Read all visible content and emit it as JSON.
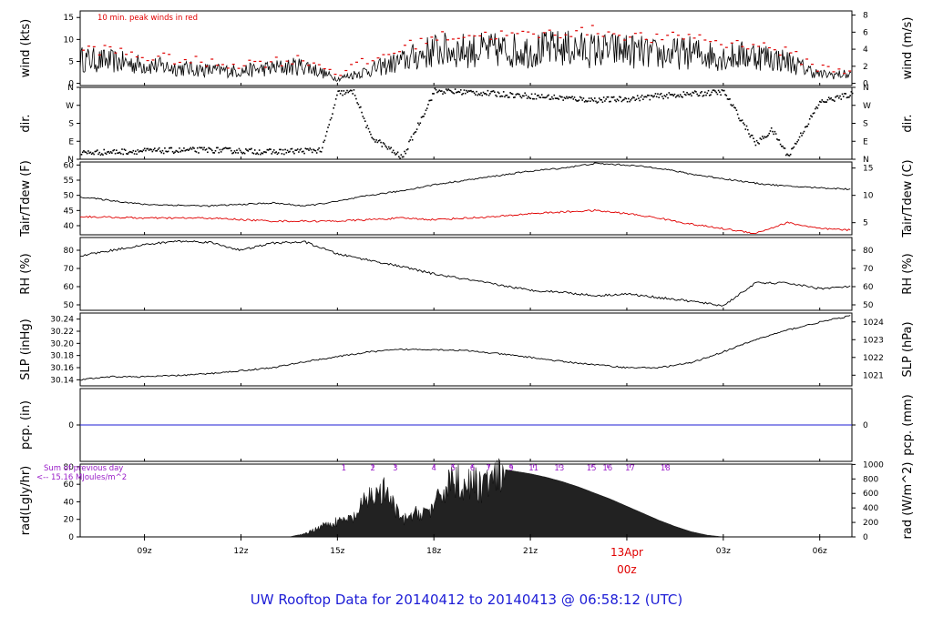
{
  "title": "UW Rooftop Data for 20140412  to  20140413 @ 06:58:12  (UTC)",
  "colors": {
    "line": "#000000",
    "red": "#e00000",
    "blue": "#1d1dd6",
    "purple": "#9a1ec8"
  },
  "chart_data": [
    {
      "type": "line",
      "name": "wind",
      "ylabel": "wind (kts)",
      "ylabel_right": "wind (m/s)",
      "annotation": "10 min. peak winds in red",
      "ylim": [
        -0.5,
        16.5
      ],
      "yticks": [
        0,
        5,
        10,
        15
      ],
      "ylim_right": [
        -0.26,
        8.49
      ],
      "yticks_right": [
        0,
        2,
        4,
        6,
        8
      ],
      "x": [
        0,
        1,
        2,
        3,
        4,
        5,
        6,
        7,
        8,
        9,
        10,
        11,
        12,
        13,
        14,
        15,
        16,
        17,
        18,
        19,
        20,
        21,
        22,
        23,
        24
      ],
      "mean": [
        5.5,
        5,
        4.2,
        3.5,
        3,
        2.8,
        3.5,
        4,
        1,
        3,
        5,
        7.5,
        7.5,
        7.5,
        7.5,
        8,
        7.5,
        7.5,
        6.5,
        7,
        6,
        6.5,
        5,
        2,
        2
      ],
      "peak": [
        8,
        7.5,
        6,
        5.5,
        4.5,
        4.5,
        5,
        5.5,
        2.5,
        5,
        8,
        10.5,
        11,
        11,
        11,
        11.5,
        12,
        11,
        10,
        11,
        9,
        9,
        7,
        3.5,
        3
      ]
    },
    {
      "type": "scatter",
      "name": "dir",
      "ylabel": "dir.",
      "ylabel_right": "dir.",
      "ylim": [
        0,
        360
      ],
      "ytick_values": [
        0,
        90,
        180,
        270,
        360
      ],
      "ytick_labels": [
        "N",
        "E",
        "S",
        "W",
        "N"
      ],
      "ytick_labels_right": [
        "N",
        "E",
        "S",
        "W",
        "N"
      ],
      "x": [
        0,
        2,
        4,
        6,
        7.5,
        8,
        8.5,
        9,
        10,
        11,
        12,
        13,
        14,
        15,
        16,
        17,
        18,
        19,
        20,
        21,
        21.5,
        22,
        23,
        24
      ],
      "values": [
        35,
        45,
        50,
        40,
        50,
        335,
        340,
        120,
        10,
        345,
        340,
        330,
        320,
        310,
        300,
        305,
        320,
        330,
        340,
        80,
        150,
        20,
        290,
        330
      ]
    },
    {
      "type": "line",
      "name": "temperature",
      "ylabel": "Tair/Tdew (F)",
      "ylabel_right": "Tair/Tdew (C)",
      "ylim": [
        37,
        61
      ],
      "yticks": [
        40,
        45,
        50,
        55,
        60
      ],
      "ylim_right": [
        2.78,
        16.11
      ],
      "yticks_right": [
        5,
        10,
        15
      ],
      "x": [
        0,
        2,
        4,
        6,
        7,
        8,
        9,
        10,
        11,
        12,
        13,
        14,
        15,
        16,
        17,
        18,
        19,
        20,
        21,
        22,
        23,
        24
      ],
      "series": [
        {
          "values": [
            49.5,
            47,
            46.5,
            47.5,
            46.5,
            48,
            50,
            51.5,
            53.5,
            55,
            56.5,
            58,
            59,
            60.5,
            60,
            59,
            57,
            55.5,
            54,
            53,
            52.5,
            52
          ]
        },
        {
          "values": [
            43,
            42.5,
            42.5,
            41.5,
            41.5,
            41.5,
            42,
            42.5,
            42,
            42.5,
            43,
            44,
            44.5,
            45,
            44,
            42.5,
            40.5,
            39,
            37.5,
            41,
            39,
            38.5
          ]
        }
      ]
    },
    {
      "type": "line",
      "name": "rh",
      "ylabel": "RH (%)",
      "ylabel_right": "RH (%)",
      "ylim": [
        47,
        87
      ],
      "yticks": [
        50,
        60,
        70,
        80
      ],
      "yticks_right": [
        50,
        60,
        70,
        80
      ],
      "x": [
        0,
        1,
        2,
        3,
        4,
        5,
        6,
        7,
        8,
        9,
        10,
        11,
        12,
        13,
        14,
        15,
        16,
        17,
        18,
        19,
        20,
        21,
        22,
        23,
        24
      ],
      "values": [
        77,
        80,
        83,
        85,
        84.5,
        80,
        84,
        84.5,
        78,
        74.5,
        71,
        67,
        64,
        61,
        58,
        57,
        55,
        56,
        54,
        52,
        49.5,
        62,
        62,
        59,
        60
      ]
    },
    {
      "type": "line",
      "name": "slp",
      "ylabel": "SLP (inHg)",
      "ylabel_right": "SLP (hPa)",
      "ylim": [
        30.13,
        30.25
      ],
      "yticks": [
        30.14,
        30.16,
        30.18,
        30.2,
        30.22,
        30.24
      ],
      "ylim_right": [
        1020.4,
        1024.5
      ],
      "yticks_right": [
        1021,
        1022,
        1023,
        1024
      ],
      "x": [
        0,
        1,
        2,
        3,
        4,
        5,
        6,
        7,
        8,
        9,
        10,
        11,
        12,
        13,
        14,
        15,
        16,
        17,
        18,
        19,
        20,
        21,
        22,
        23,
        24
      ],
      "values": [
        30.14,
        30.145,
        30.145,
        30.147,
        30.15,
        30.155,
        30.16,
        30.17,
        30.178,
        30.186,
        30.19,
        30.19,
        30.188,
        30.183,
        30.177,
        30.17,
        30.165,
        30.16,
        30.16,
        30.168,
        30.186,
        30.206,
        30.222,
        30.235,
        30.246
      ]
    },
    {
      "type": "line",
      "name": "pcp",
      "ylabel": "pcp. (in)",
      "ylabel_right": "pcp. (mm)",
      "ylim": [
        -0.1,
        0.1
      ],
      "yticks": [
        0
      ],
      "yticks_right": [
        0
      ],
      "x": [
        0,
        24
      ],
      "values": [
        0,
        0
      ]
    },
    {
      "type": "area",
      "name": "rad",
      "ylabel": "rad(Lgly/hr)",
      "ylabel_right": "rad (W/m^2)",
      "legend_lines": [
        "Sum of previous day",
        "<-- 15.16 MJoules/m^2"
      ],
      "ylim": [
        0,
        83
      ],
      "yticks": [
        0,
        20,
        40,
        60,
        80
      ],
      "ylim_right": [
        0,
        1005
      ],
      "yticks_right": [
        0,
        200,
        400,
        600,
        800,
        1000
      ],
      "x": [
        0,
        6.5,
        7,
        7.5,
        8,
        8.5,
        9,
        9.5,
        10,
        10.5,
        11,
        11.5,
        12,
        12.5,
        13,
        13.5,
        14,
        14.5,
        15,
        15.5,
        16,
        16.5,
        17,
        17.5,
        18,
        18.5,
        19,
        19.5,
        20,
        24
      ],
      "values": [
        0,
        0,
        4,
        15,
        20,
        25,
        55,
        60,
        22,
        32,
        38,
        78,
        70,
        70,
        78,
        75,
        72,
        68,
        63,
        57,
        50,
        43,
        35,
        27,
        19,
        12,
        6,
        2,
        0,
        0
      ],
      "markers": [
        {
          "label": "1",
          "x": 8.2
        },
        {
          "label": "2",
          "x": 9.1
        },
        {
          "label": "3",
          "x": 9.8
        },
        {
          "label": "4",
          "x": 11.0
        },
        {
          "label": "5",
          "x": 11.6
        },
        {
          "label": "6",
          "x": 12.2
        },
        {
          "label": "7",
          "x": 12.7
        },
        {
          "label": "9",
          "x": 13.4
        },
        {
          "label": "11",
          "x": 14.1
        },
        {
          "label": "13",
          "x": 14.9
        },
        {
          "label": "15",
          "x": 15.9
        },
        {
          "label": "16",
          "x": 16.4
        },
        {
          "label": "17",
          "x": 17.1
        },
        {
          "label": "18",
          "x": 18.2
        }
      ]
    }
  ],
  "x_axis": {
    "xlim": [
      0,
      24
    ],
    "ticks": [
      {
        "label": "09z",
        "x": 2
      },
      {
        "label": "12z",
        "x": 5
      },
      {
        "label": "15z",
        "x": 8
      },
      {
        "label": "18z",
        "x": 11
      },
      {
        "label": "21z",
        "x": 14
      },
      {
        "label": "00z",
        "x": 17,
        "highlight": true
      },
      {
        "label": "03z",
        "x": 20
      },
      {
        "label": "06z",
        "x": 23
      }
    ],
    "date_label": "13Apr"
  }
}
